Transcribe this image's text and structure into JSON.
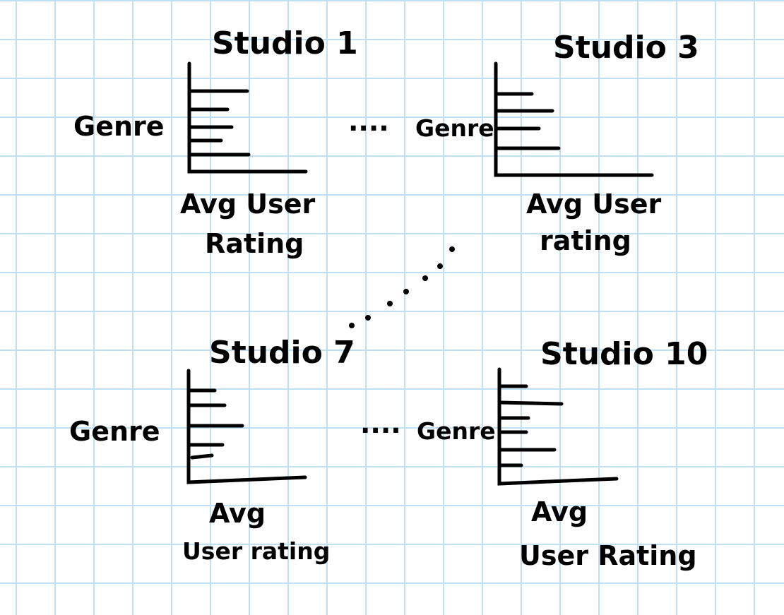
{
  "panels": [
    {
      "title": "Studio 1",
      "y_label": "Genre",
      "x_label_line1": "Avg User",
      "x_label_line2": "Rating"
    },
    {
      "title": "Studio 3",
      "y_label": "Genre",
      "x_label_line1": "Avg User",
      "x_label_line2": "rating"
    },
    {
      "title": "Studio 7",
      "y_label": "Genre",
      "x_label_line1": "Avg",
      "x_label_line2": "User rating"
    },
    {
      "title": "Studio 10",
      "y_label": "Genre",
      "x_label_line1": "Avg",
      "x_label_line2": "User Rating"
    }
  ],
  "ellipsis": {
    "top": "....",
    "bottom": "...."
  },
  "colors": {
    "ink": "#000000",
    "grid": "#bfe0f2",
    "paper": "#ffffff"
  }
}
